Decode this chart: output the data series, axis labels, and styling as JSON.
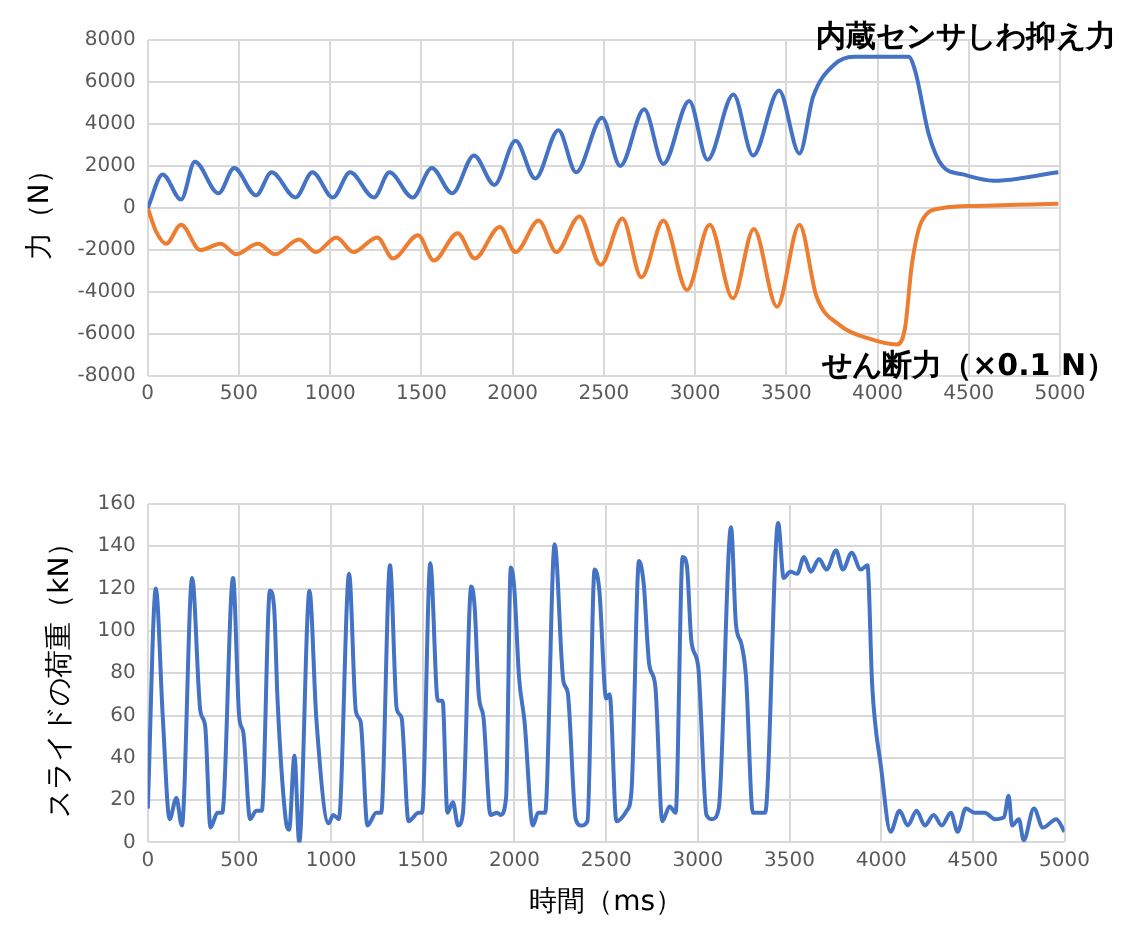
{
  "chart_data": [
    {
      "type": "line",
      "ylabel": "力（N）",
      "xlim": [
        0,
        5000
      ],
      "ylim": [
        -8000,
        8000
      ],
      "xticks": [
        0,
        500,
        1000,
        1500,
        2000,
        2500,
        3000,
        3500,
        4000,
        4500,
        5000
      ],
      "yticks": [
        -8000,
        -6000,
        -4000,
        -2000,
        0,
        2000,
        4000,
        6000,
        8000
      ],
      "grid": true,
      "legend": false,
      "marker": "none",
      "line_style": "solid",
      "series": [
        {
          "name": "内蔵センサしわ抑え力",
          "color": "#4472c4",
          "x": [
            0,
            82,
            183,
            258,
            388,
            474,
            594,
            679,
            810,
            903,
            1015,
            1109,
            1240,
            1325,
            1452,
            1557,
            1669,
            1788,
            1900,
            2016,
            2124,
            2251,
            2348,
            2490,
            2590,
            2721,
            2826,
            2968,
            3068,
            3210,
            3318,
            3460,
            3572,
            3647,
            3759,
            3871,
            4170,
            4207,
            4281,
            4356,
            4468,
            4636,
            4991
          ],
          "values": [
            0,
            1600,
            400,
            2200,
            700,
            1900,
            600,
            1700,
            500,
            1700,
            500,
            1700,
            500,
            1700,
            500,
            1900,
            700,
            2500,
            1100,
            3200,
            1400,
            3700,
            1700,
            4300,
            2000,
            4700,
            2100,
            5100,
            2300,
            5400,
            2500,
            5600,
            2600,
            5300,
            6800,
            7200,
            7200,
            6500,
            3500,
            2000,
            1600,
            1300,
            1700
          ]
        },
        {
          "name": "せん断力（×0.1 N）",
          "color": "#ed7d31",
          "x": [
            0,
            45,
            101,
            183,
            288,
            400,
            485,
            605,
            698,
            829,
            922,
            1034,
            1127,
            1258,
            1344,
            1482,
            1568,
            1699,
            1792,
            1930,
            2016,
            2143,
            2240,
            2366,
            2483,
            2602,
            2706,
            2826,
            2956,
            3080,
            3207,
            3322,
            3449,
            3572,
            3665,
            3796,
            3946,
            4106,
            4151,
            4188,
            4244,
            4356,
            4543,
            4991
          ],
          "values": [
            0,
            -1100,
            -1700,
            -800,
            -2000,
            -1700,
            -2200,
            -1700,
            -2200,
            -1500,
            -2100,
            -1400,
            -2100,
            -1400,
            -2400,
            -1300,
            -2500,
            -1200,
            -2400,
            -900,
            -2100,
            -600,
            -2100,
            -400,
            -2700,
            -500,
            -3300,
            -600,
            -3900,
            -800,
            -4300,
            -1000,
            -4700,
            -800,
            -4200,
            -5600,
            -6200,
            -6500,
            -5700,
            -2700,
            -600,
            0,
            100,
            200
          ]
        }
      ]
    },
    {
      "type": "line",
      "xlabel": "時間（ms）",
      "ylabel": "スライドの荷重（kN）",
      "xlim": [
        0,
        5000
      ],
      "ylim": [
        0,
        160
      ],
      "xticks": [
        0,
        500,
        1000,
        1500,
        2000,
        2500,
        3000,
        3500,
        4000,
        4500,
        5000
      ],
      "yticks": [
        0,
        20,
        40,
        60,
        80,
        100,
        120,
        140,
        160
      ],
      "grid": true,
      "legend": false,
      "marker": "none",
      "line_style": "solid",
      "series": [
        {
          "color": "#4472c4",
          "x": [
            0,
            44,
            82,
            119,
            156,
            186,
            242,
            287,
            313,
            342,
            380,
            406,
            465,
            499,
            521,
            558,
            592,
            622,
            666,
            689,
            708,
            752,
            771,
            800,
            826,
            882,
            919,
            986,
            1012,
            1042,
            1098,
            1135,
            1161,
            1198,
            1246,
            1273,
            1321,
            1358,
            1384,
            1422,
            1477,
            1496,
            1541,
            1582,
            1608,
            1634,
            1664,
            1693,
            1719,
            1764,
            1783,
            1805,
            1831,
            1869,
            1906,
            1924,
            1954,
            1980,
            1999,
            2025,
            2055,
            2100,
            2129,
            2167,
            2219,
            2267,
            2290,
            2334,
            2364,
            2398,
            2437,
            2463,
            2500,
            2519,
            2556,
            2612,
            2638,
            2679,
            2705,
            2735,
            2768,
            2806,
            2846,
            2879,
            2917,
            2940,
            2965,
            3002,
            3047,
            3077,
            3114,
            3181,
            3208,
            3237,
            3263,
            3300,
            3337,
            3367,
            3438,
            3468,
            3504,
            3542,
            3579,
            3616,
            3661,
            3702,
            3754,
            3791,
            3839,
            3888,
            3925,
            3951,
            4000,
            4051,
            4100,
            4145,
            4193,
            4238,
            4286,
            4330,
            4380,
            4417,
            4461,
            4509,
            4565,
            4621,
            4670,
            4695,
            4714,
            4751,
            4777,
            4833,
            4882,
            4955,
            5000
          ],
          "values": [
            16,
            120,
            59,
            11,
            21,
            8,
            125,
            62,
            55,
            7,
            14,
            14,
            125,
            59,
            52,
            11,
            15,
            15,
            119,
            111,
            67,
            11,
            6,
            41,
            0,
            119,
            59,
            9,
            13,
            11,
            127,
            62,
            57,
            8,
            14,
            14,
            131,
            63,
            59,
            10,
            14,
            14,
            132,
            67,
            67,
            14,
            19,
            8,
            14,
            121,
            111,
            70,
            59,
            13,
            14,
            13,
            21,
            130,
            120,
            78,
            57,
            8,
            14,
            14,
            141,
            76,
            71,
            11,
            8,
            10,
            129,
            119,
            68,
            70,
            10,
            15,
            24,
            133,
            122,
            84,
            74,
            10,
            17,
            14,
            135,
            131,
            95,
            83,
            13,
            11,
            16,
            149,
            103,
            94,
            78,
            14,
            14,
            14,
            151,
            125,
            128,
            127,
            135,
            128,
            134,
            129,
            138,
            129,
            137,
            129,
            131,
            74,
            35,
            5,
            15,
            8,
            15,
            8,
            13,
            8,
            14,
            5,
            16,
            14,
            14,
            11,
            12,
            22,
            8,
            11,
            1,
            16,
            7,
            11,
            5
          ]
        }
      ]
    }
  ]
}
